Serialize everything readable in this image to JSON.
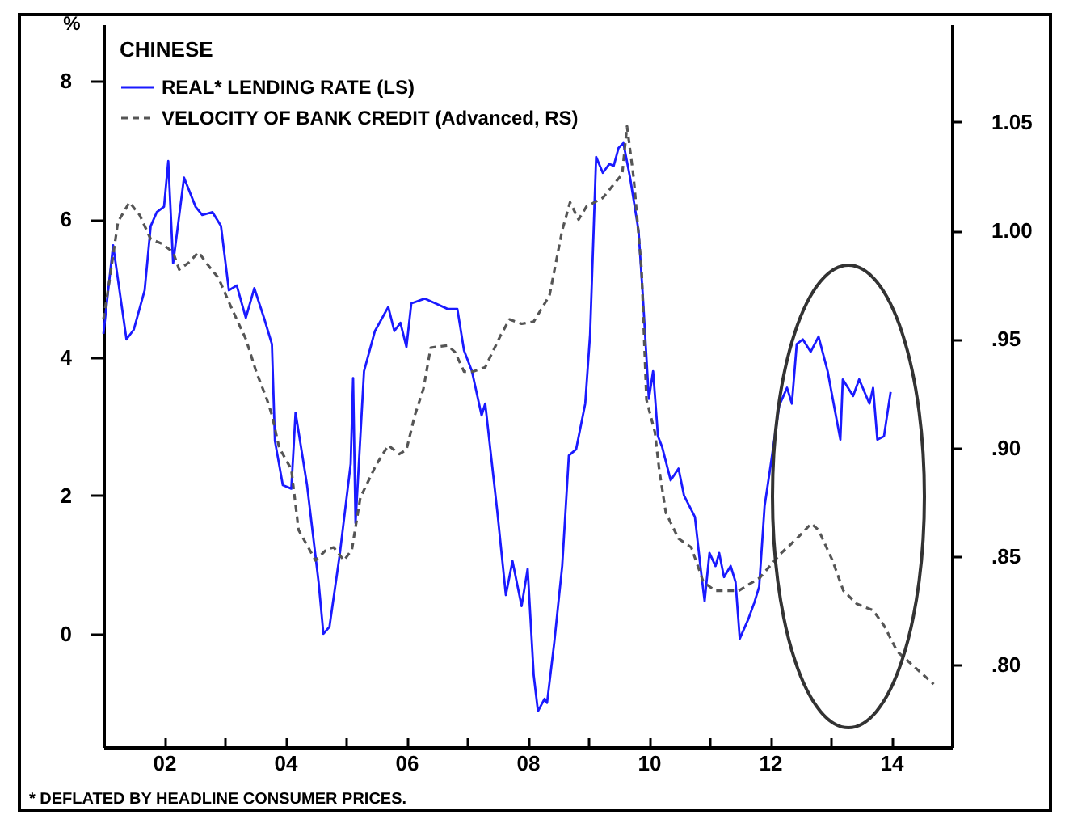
{
  "chart_data": {
    "type": "line",
    "legend_title": "CHINESE",
    "ylabel": "%",
    "annotations": [
      "* DEFLATED BY HEADLINE CONSUMER PRICES."
    ],
    "xlim": [
      2001,
      2015
    ],
    "xticks": [
      {
        "value": 2002,
        "label": "02"
      },
      {
        "value": 2003,
        "label": null
      },
      {
        "value": 2004,
        "label": "04"
      },
      {
        "value": 2005,
        "label": null
      },
      {
        "value": 2006,
        "label": "06"
      },
      {
        "value": 2007,
        "label": null
      },
      {
        "value": 2008,
        "label": "08"
      },
      {
        "value": 2009,
        "label": null
      },
      {
        "value": 2010,
        "label": "10"
      },
      {
        "value": 2011,
        "label": null
      },
      {
        "value": 2012,
        "label": "12"
      },
      {
        "value": 2013,
        "label": null
      },
      {
        "value": 2014,
        "label": "14"
      }
    ],
    "ylim": [
      -1.64,
      8.82
    ],
    "yticks": [
      0,
      2,
      4,
      6,
      8
    ],
    "y2lim": [
      0.762,
      1.095
    ],
    "y2ticks": [
      {
        "value": 0.8,
        "label": ".80"
      },
      {
        "value": 0.85,
        "label": ".85"
      },
      {
        "value": 0.9,
        "label": ".90"
      },
      {
        "value": 0.95,
        "label": ".95"
      },
      {
        "value": 1.0,
        "label": "1.00"
      },
      {
        "value": 1.05,
        "label": "1.05"
      }
    ],
    "legend": "top left",
    "grid": false,
    "series": [
      {
        "name": "REAL* LENDING RATE (LS)",
        "color": "#1a1aff",
        "line_style": "solid",
        "x": [
          2001.0,
          2001.16,
          2001.38,
          2001.5,
          2001.68,
          2001.78,
          2001.88,
          2002.0,
          2002.07,
          2002.15,
          2002.33,
          2002.52,
          2002.63,
          2002.8,
          2002.94,
          2003.07,
          2003.2,
          2003.35,
          2003.49,
          2003.65,
          2003.78,
          2003.83,
          2003.96,
          2004.1,
          2004.17,
          2004.36,
          2004.55,
          2004.63,
          2004.73,
          2004.9,
          2005.08,
          2005.12,
          2005.16,
          2005.3,
          2005.48,
          2005.7,
          2005.8,
          2005.9,
          2006.0,
          2006.08,
          2006.3,
          2006.48,
          2006.68,
          2006.84,
          2006.95,
          2007.08,
          2007.24,
          2007.3,
          2007.5,
          2007.64,
          2007.75,
          2007.9,
          2008.0,
          2008.1,
          2008.17,
          2008.28,
          2008.32,
          2008.44,
          2008.57,
          2008.68,
          2008.8,
          2008.95,
          2009.03,
          2009.13,
          2009.24,
          2009.35,
          2009.42,
          2009.5,
          2009.58,
          2009.69,
          2009.83,
          2009.9,
          2010.0,
          2010.07,
          2010.15,
          2010.22,
          2010.36,
          2010.49,
          2010.58,
          2010.76,
          2010.85,
          2010.92,
          2011.0,
          2011.1,
          2011.16,
          2011.24,
          2011.35,
          2011.43,
          2011.5,
          2011.64,
          2011.74,
          2011.82,
          2011.91,
          2012.01,
          2012.15,
          2012.28,
          2012.36,
          2012.44,
          2012.54,
          2012.67,
          2012.8,
          2012.95,
          2013.0,
          2013.16,
          2013.2,
          2013.37,
          2013.47,
          2013.64,
          2013.7,
          2013.77,
          2013.88,
          2013.96,
          2013.99
        ],
        "axis": "y",
        "values": [
          4.34,
          5.62,
          4.26,
          4.4,
          4.97,
          5.9,
          6.1,
          6.18,
          6.84,
          5.36,
          6.6,
          6.18,
          6.06,
          6.1,
          5.9,
          4.97,
          5.04,
          4.57,
          5.0,
          4.57,
          4.19,
          2.79,
          2.15,
          2.1,
          3.2,
          2.15,
          0.75,
          0.0,
          0.1,
          1.15,
          2.46,
          3.7,
          1.6,
          3.8,
          4.38,
          4.73,
          4.38,
          4.5,
          4.15,
          4.78,
          4.85,
          4.78,
          4.7,
          4.7,
          4.1,
          3.8,
          3.16,
          3.33,
          1.76,
          0.56,
          1.05,
          0.4,
          0.94,
          -0.6,
          -1.12,
          -0.94,
          -1.0,
          -0.12,
          0.98,
          2.58,
          2.67,
          3.33,
          4.33,
          6.9,
          6.67,
          6.8,
          6.77,
          7.03,
          7.1,
          6.6,
          5.83,
          4.9,
          3.4,
          3.8,
          2.86,
          2.7,
          2.22,
          2.39,
          2.0,
          1.69,
          0.98,
          0.47,
          1.17,
          0.98,
          1.17,
          0.82,
          0.98,
          0.75,
          -0.07,
          0.21,
          0.45,
          0.68,
          1.85,
          2.44,
          3.3,
          3.56,
          3.33,
          4.19,
          4.26,
          4.08,
          4.3,
          3.8,
          3.56,
          2.81,
          3.68,
          3.44,
          3.68,
          3.33,
          3.56,
          2.81,
          2.86,
          3.33,
          3.5
        ]
      },
      {
        "name": "VELOCITY OF BANK CREDIT (Advanced, RS)",
        "color": "#555555",
        "line_style": "dashed",
        "axis": "y2",
        "x": [
          2001.0,
          2001.1,
          2001.24,
          2001.43,
          2001.6,
          2001.78,
          2001.96,
          2002.15,
          2002.25,
          2002.4,
          2002.57,
          2002.7,
          2002.9,
          2003.07,
          2003.2,
          2003.35,
          2003.52,
          2003.7,
          2003.78,
          2003.9,
          2004.1,
          2004.22,
          2004.36,
          2004.5,
          2004.68,
          2004.8,
          2004.97,
          2005.1,
          2005.24,
          2005.5,
          2005.7,
          2005.88,
          2006.0,
          2006.14,
          2006.28,
          2006.4,
          2006.68,
          2006.8,
          2006.95,
          2007.1,
          2007.3,
          2007.56,
          2007.7,
          2007.9,
          2008.1,
          2008.36,
          2008.57,
          2008.7,
          2008.84,
          2008.97,
          2009.24,
          2009.56,
          2009.64,
          2009.75,
          2009.88,
          2009.96,
          2010.1,
          2010.17,
          2010.28,
          2010.49,
          2010.7,
          2010.9,
          2011.1,
          2011.48,
          2011.83,
          2012.17,
          2012.44,
          2012.68,
          2012.8,
          2013.03,
          2013.21,
          2013.43,
          2013.7,
          2013.88,
          2014.1,
          2014.3,
          2014.7
        ],
        "values": [
          0.959,
          0.977,
          1.004,
          1.013,
          1.007,
          0.996,
          0.994,
          0.99,
          0.982,
          0.985,
          0.99,
          0.985,
          0.978,
          0.967,
          0.959,
          0.95,
          0.935,
          0.922,
          0.915,
          0.9,
          0.89,
          0.862,
          0.855,
          0.848,
          0.853,
          0.854,
          0.848,
          0.853,
          0.877,
          0.892,
          0.901,
          0.897,
          0.899,
          0.915,
          0.927,
          0.946,
          0.947,
          0.944,
          0.935,
          0.935,
          0.937,
          0.952,
          0.959,
          0.957,
          0.958,
          0.97,
          1.0,
          1.013,
          1.005,
          1.011,
          1.015,
          1.026,
          1.048,
          1.024,
          0.982,
          0.922,
          0.907,
          0.89,
          0.87,
          0.858,
          0.854,
          0.838,
          0.834,
          0.834,
          0.84,
          0.851,
          0.858,
          0.865,
          0.862,
          0.848,
          0.834,
          0.828,
          0.825,
          0.818,
          0.806,
          0.801,
          0.791
        ]
      }
    ]
  }
}
